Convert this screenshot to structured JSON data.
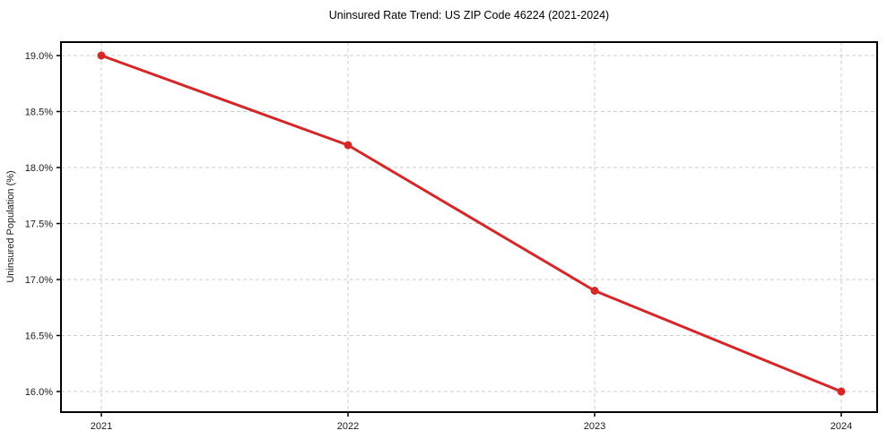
{
  "chart_data": {
    "type": "line",
    "title": "Uninsured Rate Trend: US ZIP Code 46224 (2021-2024)",
    "xlabel": "",
    "ylabel": "Uninsured Population (%)",
    "x": [
      "2021",
      "2022",
      "2023",
      "2024"
    ],
    "values": [
      19.0,
      18.2,
      16.9,
      16.0
    ],
    "y_ticks": [
      16.0,
      16.5,
      17.0,
      17.5,
      18.0,
      18.5,
      19.0
    ],
    "y_tick_labels": [
      "16.0%",
      "16.5%",
      "17.0%",
      "17.5%",
      "18.0%",
      "18.5%",
      "19.0%"
    ],
    "ylim": [
      15.816,
      19.12
    ],
    "grid": true,
    "grid_style": "dashed",
    "legend": "none",
    "colors": {
      "line": "#d62728",
      "marker": "#d62728",
      "grid": "#cccccc",
      "spine": "#000000",
      "background": "#ffffff"
    }
  }
}
